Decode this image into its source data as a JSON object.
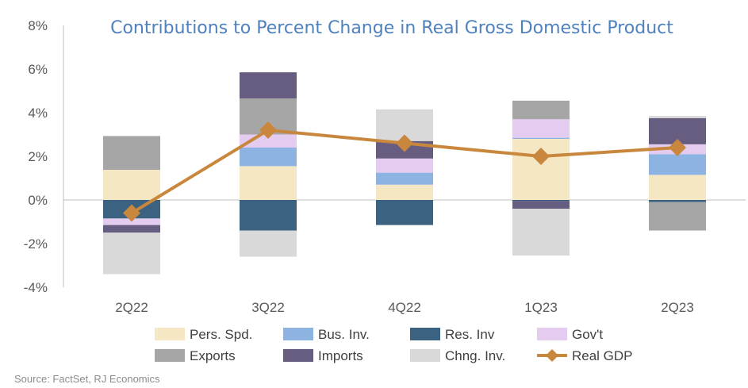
{
  "chart_data": {
    "type": "bar",
    "stacked": true,
    "title": "Contributions to Percent Change in Real Gross Domestic Product",
    "categories": [
      "2Q22",
      "3Q22",
      "4Q22",
      "1Q23",
      "2Q23"
    ],
    "y_tick_labels": [
      "8%",
      "6%",
      "4%",
      "2%",
      "0%",
      "-2%",
      "-4%"
    ],
    "y_ticks": [
      8,
      6,
      4,
      2,
      0,
      -2,
      -4
    ],
    "ylim": [
      -4,
      8
    ],
    "xlabel": "",
    "ylabel": "",
    "grid": false,
    "legend_position": "bottom",
    "series": [
      {
        "name": "Pers. Spd.",
        "color": "#f5e6c4",
        "values": [
          1.38,
          1.55,
          0.7,
          2.8,
          1.15
        ]
      },
      {
        "name": "Bus. Inv.",
        "color": "#8db3e2",
        "values": [
          0.0,
          0.85,
          0.55,
          0.05,
          0.95
        ]
      },
      {
        "name": "Res. Inv",
        "color": "#3c6282",
        "values": [
          -0.85,
          -1.4,
          -1.15,
          -0.05,
          -0.1
        ]
      },
      {
        "name": "Gov't",
        "color": "#e3ccf0",
        "values": [
          -0.3,
          0.6,
          0.65,
          0.85,
          0.45
        ]
      },
      {
        "name": "Exports",
        "color": "#a6a6a6",
        "values": [
          1.55,
          1.65,
          0.0,
          0.85,
          -1.3
        ]
      },
      {
        "name": "Imports",
        "color": "#675d80",
        "values": [
          -0.35,
          1.2,
          0.8,
          -0.35,
          1.2
        ]
      },
      {
        "name": "Chng. Inv.",
        "color": "#d9d9d9",
        "values": [
          -1.9,
          -1.2,
          1.45,
          -2.15,
          0.1
        ]
      }
    ],
    "line_series": {
      "name": "Real GDP",
      "color": "#c9873d",
      "values": [
        -0.6,
        3.2,
        2.6,
        2.0,
        2.4
      ]
    }
  },
  "footer": {
    "source": "Source: FactSet, RJ Economics"
  }
}
